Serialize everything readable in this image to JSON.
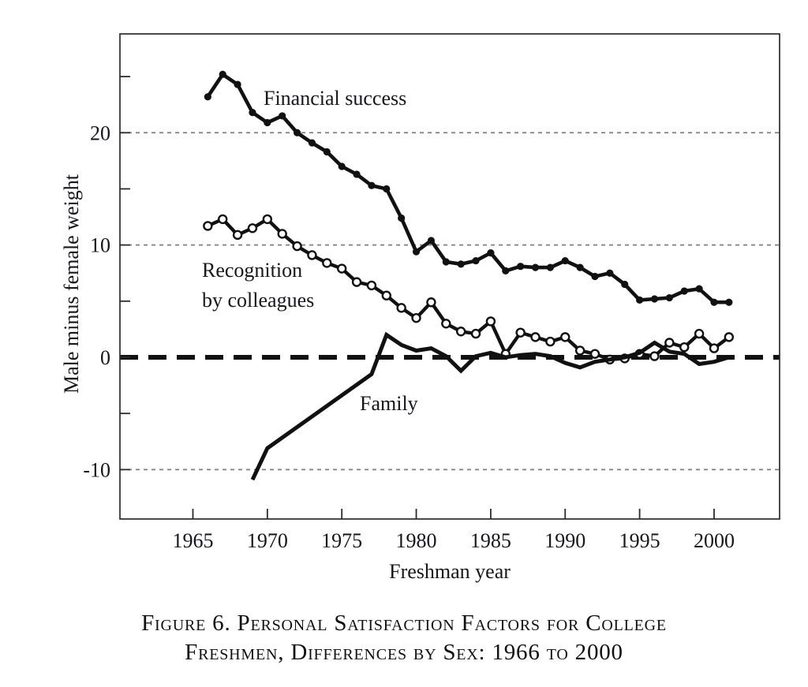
{
  "figure": {
    "caption_line1": "Figure 6. Personal Satisfaction Factors for College",
    "caption_line2": "Freshmen, Differences by Sex: 1966 to 2000"
  },
  "chart_data": {
    "type": "line",
    "title": "",
    "xlabel": "Freshman year",
    "ylabel": "Male minus female weight",
    "xlim": [
      1960.1,
      2004.4
    ],
    "ylim": [
      -14.4,
      28.8
    ],
    "x_ticks": [
      1965,
      1970,
      1975,
      1980,
      1985,
      1990,
      1995,
      2000
    ],
    "y_ticks": [
      -10,
      0,
      10,
      20
    ],
    "y_minor_ticks": [
      -5,
      5,
      15,
      25
    ],
    "grid_dotted_at": [
      -10,
      10,
      20
    ],
    "zero_line_dashed": true,
    "legend": "in-plot text labels",
    "line_color": "#111111",
    "grid_color": "#7f7f7f",
    "frame_color": "#2b2b2b",
    "series": [
      {
        "name": "Financial success",
        "marker": "filled-circle",
        "x": [
          1966,
          1967,
          1968,
          1969,
          1970,
          1971,
          1972,
          1973,
          1974,
          1975,
          1976,
          1977,
          1978,
          1979,
          1980,
          1981,
          1982,
          1983,
          1984,
          1985,
          1986,
          1987,
          1988,
          1989,
          1990,
          1991,
          1992,
          1993,
          1994,
          1995,
          1996,
          1997,
          1998,
          1999,
          2000,
          2001
        ],
        "y": [
          23.2,
          25.2,
          24.3,
          21.8,
          20.9,
          21.5,
          20.0,
          19.1,
          18.3,
          17.0,
          16.3,
          15.3,
          15.0,
          12.4,
          9.4,
          10.4,
          8.5,
          8.3,
          8.6,
          9.3,
          7.7,
          8.1,
          8.0,
          8.0,
          8.6,
          8.0,
          7.2,
          7.5,
          6.5,
          5.1,
          5.2,
          5.3,
          5.9,
          6.1,
          4.9,
          4.9
        ]
      },
      {
        "name": "Recognition by colleagues",
        "label_line1": "Recognition",
        "label_line2": "by colleagues",
        "marker": "open-circle",
        "x": [
          1966,
          1967,
          1968,
          1969,
          1970,
          1971,
          1972,
          1973,
          1974,
          1975,
          1976,
          1977,
          1978,
          1979,
          1980,
          1981,
          1982,
          1983,
          1984,
          1985,
          1986,
          1987,
          1988,
          1989,
          1990,
          1991,
          1992,
          1993,
          1994,
          1995,
          1996,
          1997,
          1998,
          1999,
          2000,
          2001
        ],
        "y": [
          11.7,
          12.3,
          10.9,
          11.5,
          12.3,
          11.0,
          9.9,
          9.1,
          8.4,
          7.9,
          6.7,
          6.4,
          5.5,
          4.4,
          3.5,
          4.9,
          3.0,
          2.3,
          2.1,
          3.2,
          0.3,
          2.2,
          1.8,
          1.4,
          1.8,
          0.6,
          0.3,
          -0.2,
          -0.1,
          0.3,
          0.1,
          1.3,
          0.9,
          2.1,
          0.8,
          1.8
        ]
      },
      {
        "name": "Family",
        "marker": "none",
        "x": [
          1969,
          1970,
          1977,
          1978,
          1979,
          1980,
          1981,
          1982,
          1983,
          1984,
          1985,
          1986,
          1987,
          1988,
          1989,
          1990,
          1991,
          1992,
          1993,
          1994,
          1995,
          1996,
          1997,
          1998,
          1999,
          2000,
          2001
        ],
        "y": [
          -10.9,
          -8.1,
          -1.5,
          2.0,
          1.1,
          0.6,
          0.8,
          0.1,
          -1.2,
          0.1,
          0.4,
          0.0,
          0.2,
          0.3,
          0.1,
          -0.5,
          -0.9,
          -0.4,
          -0.2,
          0.0,
          0.4,
          1.3,
          0.5,
          0.3,
          -0.6,
          -0.4,
          0.0
        ]
      }
    ]
  }
}
